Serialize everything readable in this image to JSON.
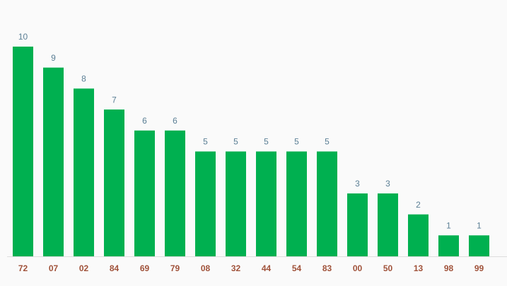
{
  "chart_data": {
    "type": "bar",
    "categories": [
      "72",
      "07",
      "02",
      "84",
      "69",
      "79",
      "08",
      "32",
      "44",
      "54",
      "83",
      "00",
      "50",
      "13",
      "98",
      "99"
    ],
    "values": [
      10,
      9,
      8,
      7,
      6,
      6,
      5,
      5,
      5,
      5,
      5,
      3,
      3,
      2,
      1,
      1
    ],
    "color": "#00b050"
  }
}
